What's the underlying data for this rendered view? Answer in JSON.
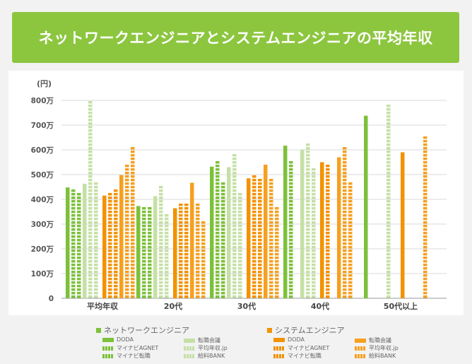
{
  "title": "ネットワークエンジニアとシステムエンジニアの平均年収",
  "colors": {
    "banner": "#8cc63f",
    "green_dark": "#7cc13a",
    "green_light": "#c5e0a5",
    "orange": "#f39200",
    "orange_mid": "#f6a020",
    "grid": "#d9d9d9"
  },
  "legend": {
    "network": {
      "title": "ネットワークエンジニア",
      "items": [
        "DODA",
        "マイナビAGNET",
        "マイナビ転職",
        "転職会議",
        "平均年収.jp",
        "給料BANK"
      ]
    },
    "system": {
      "title": "システムエンジニア",
      "items": [
        "DODA",
        "マイナビAGNET",
        "マイナビ転職",
        "転職会議",
        "平均年収.jp",
        "給料BANK"
      ]
    }
  },
  "chart_data": {
    "type": "bar",
    "unit_label": "(円)",
    "y_ticks": [
      "0",
      "100万",
      "200万",
      "300万",
      "400万",
      "500万",
      "600万",
      "700万",
      "800万"
    ],
    "ylim": [
      0,
      800
    ],
    "categories": [
      "平均年収",
      "20代",
      "30代",
      "40代",
      "50代以上"
    ],
    "series": [
      {
        "name": "DODA",
        "group": "network",
        "values": [
          448,
          373,
          532,
          617,
          738
        ]
      },
      {
        "name": "マイナビAGNET",
        "group": "network",
        "values": [
          447,
          373,
          557,
          557,
          null
        ]
      },
      {
        "name": "マイナビ転職",
        "group": "network",
        "values": [
          432,
          378,
          478,
          null,
          null
        ]
      },
      {
        "name": "転職会議",
        "group": "network",
        "values": [
          463,
          413,
          530,
          600,
          null
        ]
      },
      {
        "name": "平均年収.jp",
        "group": "network",
        "values": [
          800,
          462,
          583,
          635,
          785
        ]
      },
      {
        "name": "給料BANK",
        "group": "network",
        "values": [
          482,
          349,
          432,
          532,
          null
        ]
      },
      {
        "name": "DODA",
        "group": "system",
        "values": [
          415,
          364,
          485,
          550,
          590
        ]
      },
      {
        "name": "マイナビAGNET",
        "group": "system",
        "values": [
          435,
          393,
          505,
          553,
          null
        ]
      },
      {
        "name": "マイナビ転職",
        "group": "system",
        "values": [
          440,
          393,
          485,
          null,
          null
        ]
      },
      {
        "name": "転職会議",
        "group": "system",
        "values": [
          498,
          467,
          540,
          570,
          null
        ]
      },
      {
        "name": "平均年収.jp",
        "group": "system",
        "values": [
          545,
          390,
          490,
          615,
          658
        ]
      },
      {
        "name": "給料BANK",
        "group": "system",
        "values": [
          613,
          325,
          372,
          480,
          null
        ]
      }
    ]
  }
}
